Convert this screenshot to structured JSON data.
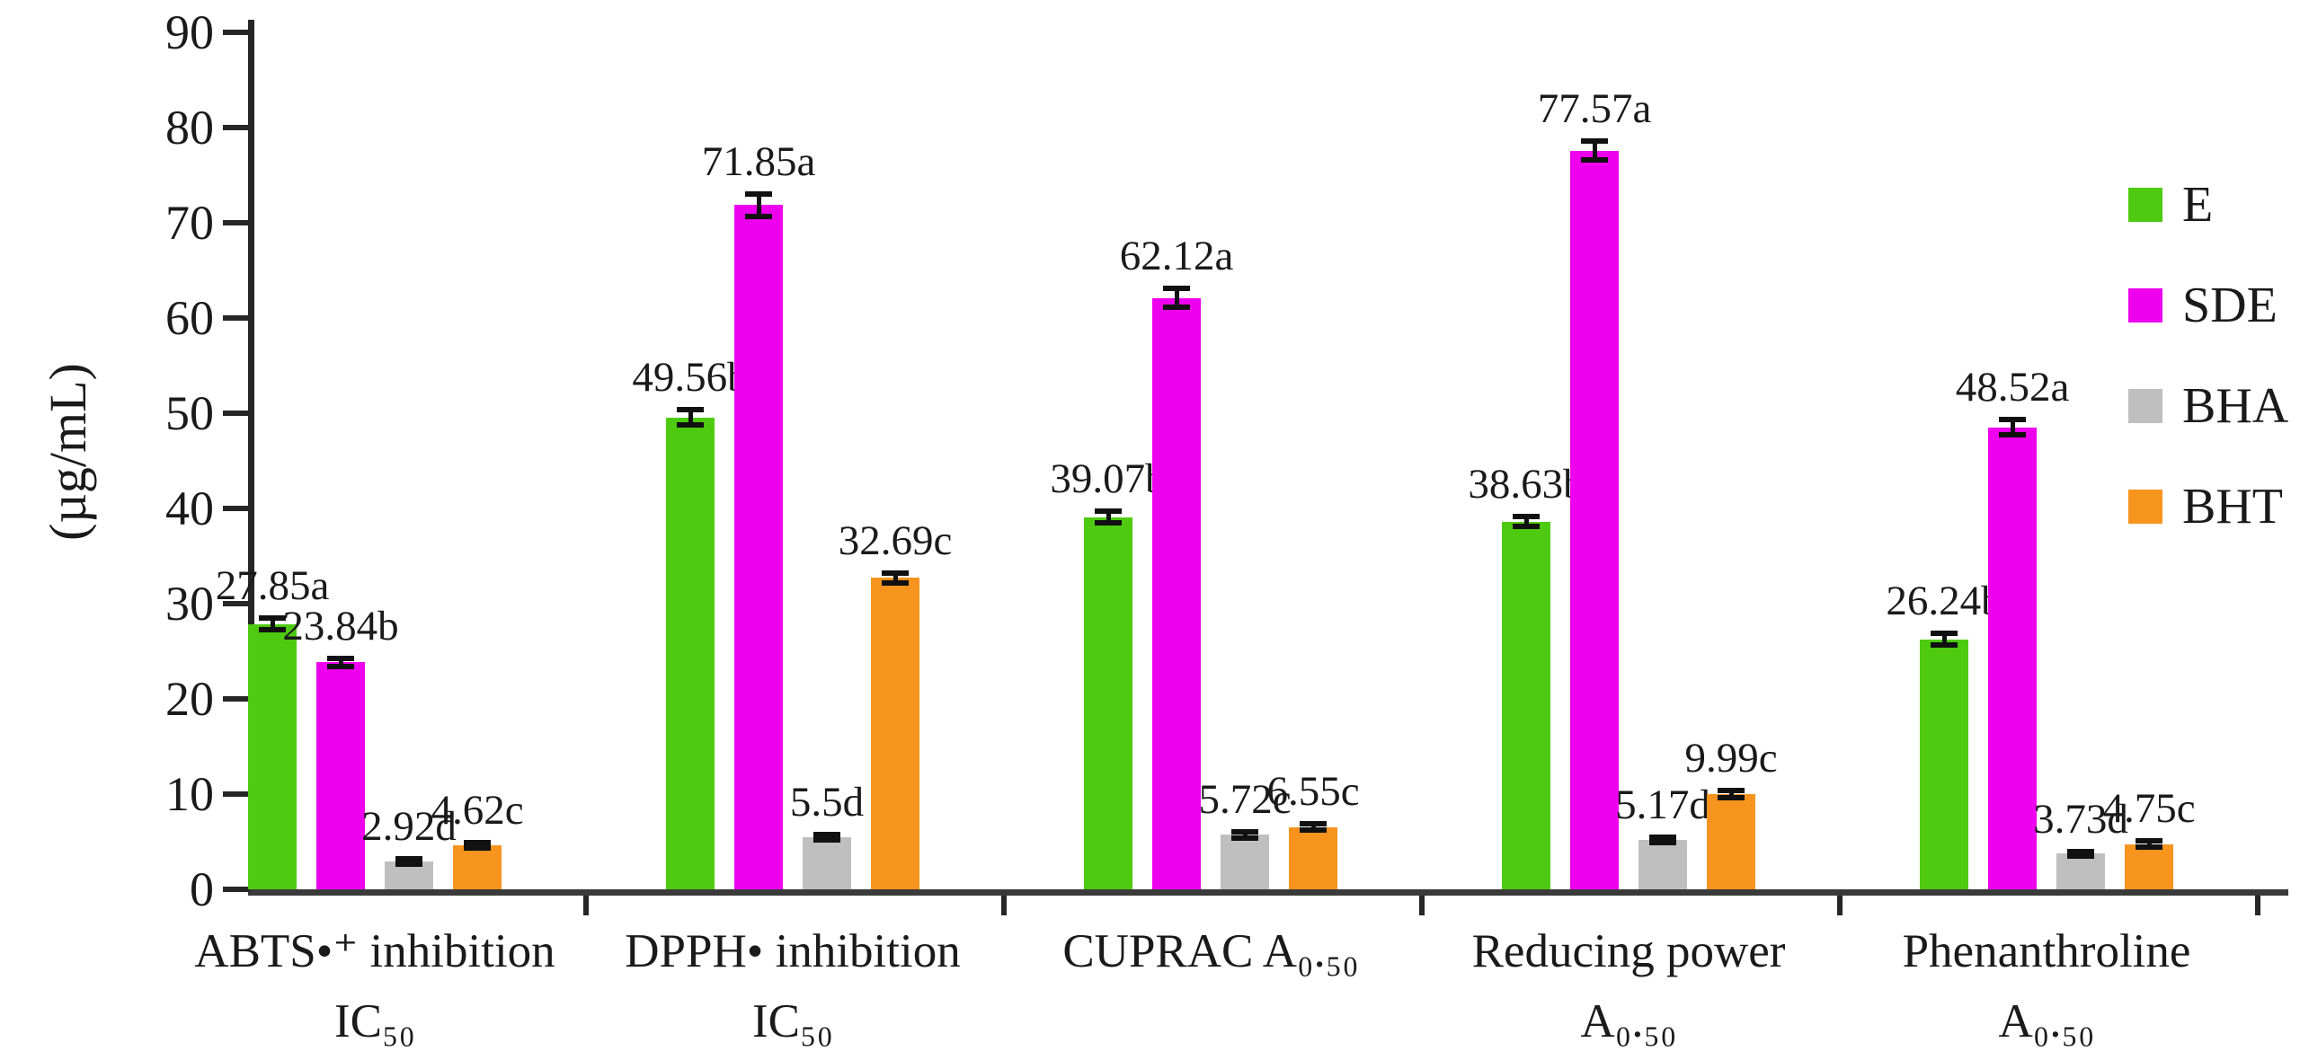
{
  "chart_data": {
    "type": "bar",
    "title": "",
    "xlabel": "",
    "ylabel": "(µg/mL)",
    "ylim": [
      0,
      90
    ],
    "yticks": [
      0,
      10,
      20,
      30,
      40,
      50,
      60,
      70,
      80,
      90
    ],
    "grid": false,
    "legend_position": "right",
    "categories": [
      {
        "line1": "ABTS•⁺ inhibition",
        "line2": "IC₅₀"
      },
      {
        "line1": "DPPH• inhibition",
        "line2": "IC₅₀"
      },
      {
        "line1": "CUPRAC A₀.₅₀",
        "line2": ""
      },
      {
        "line1": "Reducing power",
        "line2": "A₀.₅₀"
      },
      {
        "line1": "Phenanthroline",
        "line2": "A₀.₅₀"
      }
    ],
    "series": [
      {
        "name": "E",
        "color": "#4ecb10",
        "values": [
          27.85,
          49.56,
          39.07,
          38.63,
          26.24
        ],
        "errors": [
          0.6,
          0.8,
          0.6,
          0.5,
          0.6
        ],
        "labels": [
          "27.85a",
          "49.56b",
          "39.07b",
          "38.63b",
          "26.24b"
        ]
      },
      {
        "name": "SDE",
        "color": "#ee00ee",
        "values": [
          23.84,
          71.85,
          62.12,
          77.57,
          48.52
        ],
        "errors": [
          0.4,
          1.2,
          1.0,
          1.0,
          0.8
        ],
        "labels": [
          "23.84b",
          "71.85a",
          "62.12a",
          "77.57a",
          "48.52a"
        ]
      },
      {
        "name": "BHA",
        "color": "#bfbfbf",
        "values": [
          2.92,
          5.5,
          5.72,
          5.17,
          3.73
        ],
        "errors": [
          0.25,
          0.3,
          0.3,
          0.3,
          0.25
        ],
        "labels": [
          "2.92d",
          "5.5d",
          "5.72c",
          "5.17d",
          "3.73d"
        ]
      },
      {
        "name": "BHT",
        "color": "#f7941e",
        "values": [
          4.62,
          32.69,
          6.55,
          9.99,
          4.75
        ],
        "errors": [
          0.3,
          0.5,
          0.35,
          0.4,
          0.3
        ],
        "labels": [
          "4.62c",
          "32.69c",
          "6.55c",
          "9.99c",
          "4.75c"
        ]
      }
    ],
    "legend_entries": [
      "E",
      "SDE",
      "BHA",
      "BHT"
    ]
  },
  "colors": {
    "axis": "#262626",
    "text": "#1a1a1a",
    "error_bar": "#111111"
  }
}
